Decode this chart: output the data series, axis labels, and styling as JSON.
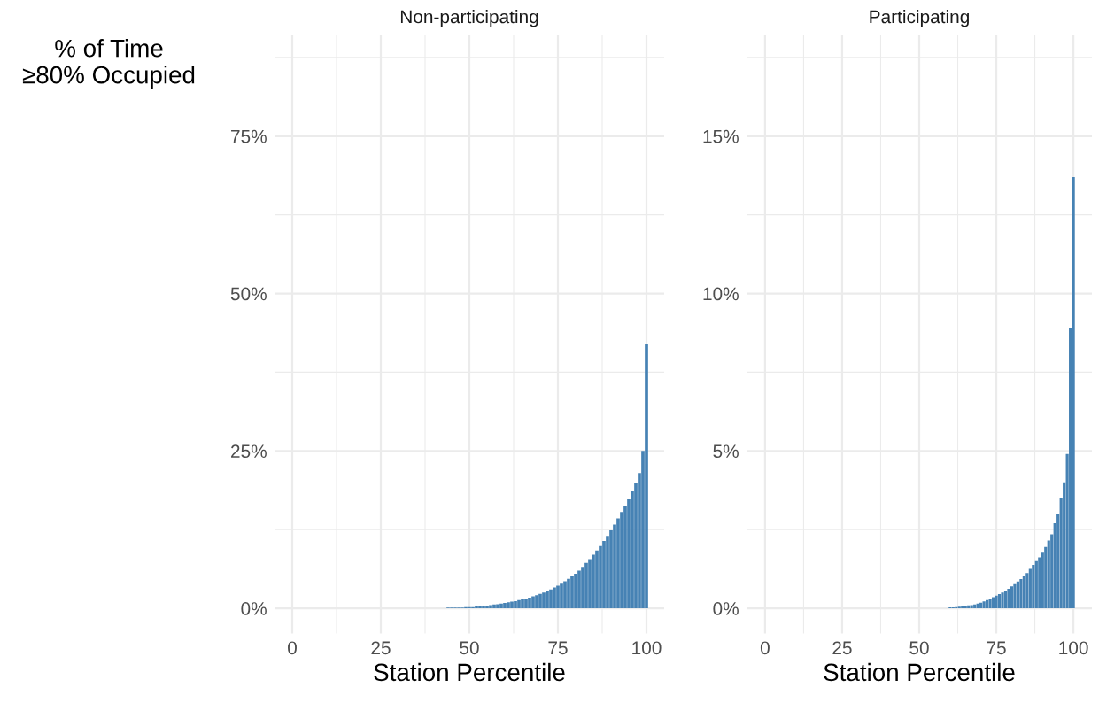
{
  "chart_data": [
    {
      "type": "bar",
      "title": "Non-participating",
      "xlabel": "Station Percentile",
      "ylabel": "% of Time\n≥80% Occupied",
      "color": "#4682b4",
      "grid": true,
      "x": [
        44,
        45,
        46,
        47,
        48,
        49,
        50,
        51,
        52,
        53,
        54,
        55,
        56,
        57,
        58,
        59,
        60,
        61,
        62,
        63,
        64,
        65,
        66,
        67,
        68,
        69,
        70,
        71,
        72,
        73,
        74,
        75,
        76,
        77,
        78,
        79,
        80,
        81,
        82,
        83,
        84,
        85,
        86,
        87,
        88,
        89,
        90,
        91,
        92,
        93,
        94,
        95,
        96,
        97,
        98,
        99,
        100
      ],
      "values": [
        0.1,
        0.1,
        0.1,
        0.1,
        0.1,
        0.2,
        0.2,
        0.2,
        0.3,
        0.3,
        0.4,
        0.4,
        0.5,
        0.6,
        0.65,
        0.75,
        0.85,
        0.95,
        1.05,
        1.15,
        1.3,
        1.4,
        1.55,
        1.7,
        1.9,
        2.1,
        2.3,
        2.5,
        2.7,
        3.0,
        3.3,
        3.6,
        3.9,
        4.3,
        4.7,
        5.1,
        5.5,
        6.0,
        6.6,
        7.2,
        7.8,
        8.5,
        9.2,
        9.9,
        10.7,
        11.5,
        12.4,
        13.3,
        14.3,
        15.3,
        16.3,
        17.3,
        18.6,
        19.9,
        21.5,
        25.0,
        42.0
      ],
      "xlim": [
        -5,
        105
      ],
      "xticks": [
        0,
        25,
        50,
        75,
        100
      ],
      "ylim": [
        -4,
        91
      ],
      "yticks": [
        {
          "value": 0,
          "label": "0%"
        },
        {
          "value": 25,
          "label": "25%"
        },
        {
          "value": 50,
          "label": "50%"
        },
        {
          "value": 75,
          "label": "75%"
        }
      ]
    },
    {
      "type": "bar",
      "title": "Participating",
      "xlabel": "Station Percentile",
      "color": "#4682b4",
      "grid": true,
      "x": [
        60,
        61,
        62,
        63,
        64,
        65,
        66,
        67,
        68,
        69,
        70,
        71,
        72,
        73,
        74,
        75,
        76,
        77,
        78,
        79,
        80,
        81,
        82,
        83,
        84,
        85,
        86,
        87,
        88,
        89,
        90,
        91,
        92,
        93,
        94,
        95,
        96,
        97,
        98,
        99,
        100
      ],
      "values": [
        0.03,
        0.03,
        0.04,
        0.05,
        0.06,
        0.07,
        0.09,
        0.1,
        0.12,
        0.15,
        0.18,
        0.22,
        0.26,
        0.3,
        0.35,
        0.4,
        0.45,
        0.5,
        0.56,
        0.62,
        0.7,
        0.77,
        0.85,
        0.93,
        1.02,
        1.12,
        1.25,
        1.38,
        1.5,
        1.62,
        1.77,
        1.95,
        2.15,
        2.35,
        2.7,
        3.0,
        3.5,
        4.0,
        4.9,
        8.9,
        13.7
      ],
      "xlim": [
        -6,
        106
      ],
      "xticks": [
        0,
        25,
        50,
        75,
        100
      ],
      "ylim": [
        -0.8,
        18.2
      ],
      "yticks": [
        {
          "value": 0,
          "label": "0%"
        },
        {
          "value": 5,
          "label": "5%"
        },
        {
          "value": 10,
          "label": "10%"
        },
        {
          "value": 15,
          "label": "15%"
        }
      ]
    }
  ]
}
